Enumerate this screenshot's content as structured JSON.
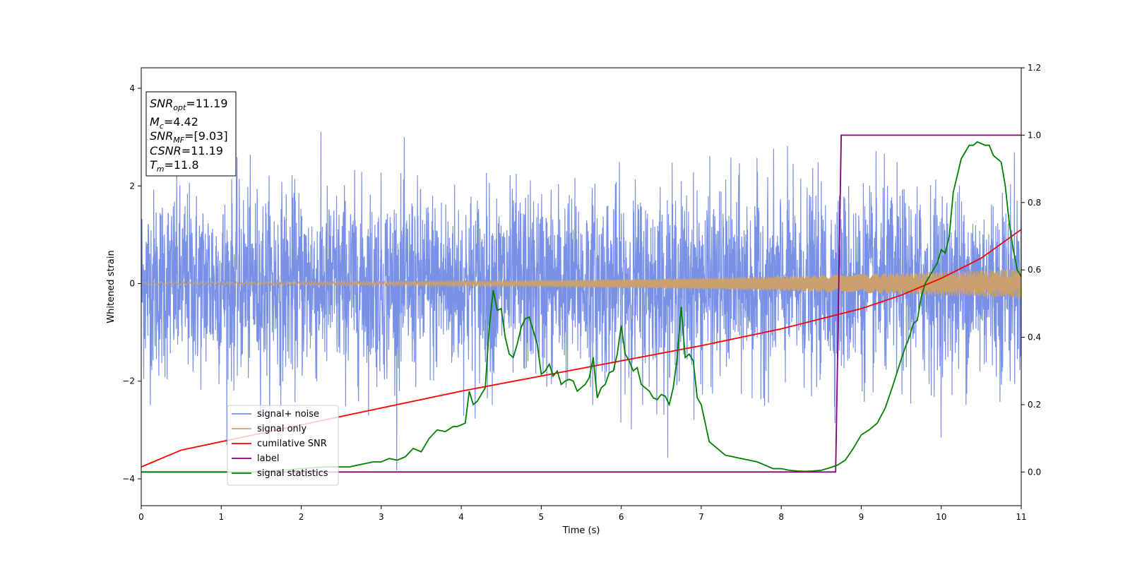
{
  "chart_data": {
    "type": "line",
    "xlabel": "Time (s)",
    "ylabel": "Whitened strain",
    "xlim": [
      0,
      11
    ],
    "ylim_left": [
      -4.55,
      4.42
    ],
    "ylim_right": [
      -0.1,
      1.2
    ],
    "x_ticks": [
      "0",
      "1",
      "2",
      "3",
      "4",
      "5",
      "6",
      "7",
      "8",
      "9",
      "10",
      "11"
    ],
    "y_ticks_left": [
      "4",
      "2",
      "0",
      "−2",
      "−4"
    ],
    "y_ticks_right": [
      "1.2",
      "1.0",
      "0.8",
      "0.6",
      "0.4",
      "0.2",
      "0.0"
    ],
    "legend_position": "lower-left",
    "info_box": {
      "snr_opt_label": "SNR",
      "snr_opt_sub": "opt",
      "snr_opt_value": "=11.19",
      "mc_label": "M",
      "mc_sub": "c",
      "mc_value": "=4.42",
      "snr_mf_label": "SNR",
      "snr_mf_sub": "MF",
      "snr_mf_value": "=[9.03]",
      "csnr_label": "CSNR",
      "csnr_value": "=11.19",
      "tm_label": "T",
      "tm_sub": "m",
      "tm_value": "=11.8"
    },
    "series": [
      {
        "name": "signal+ noise",
        "axis": "left",
        "color": "#7890e6",
        "kind": "noise",
        "sigma": 0.95,
        "max_abs": 4.0
      },
      {
        "name": "signal only",
        "axis": "left",
        "color": "#c9a06e",
        "kind": "chirp",
        "amplitude_start": 0.03,
        "amplitude_end": 0.3
      },
      {
        "name": "cumilative SNR",
        "axis": "right",
        "color": "#ff0000",
        "x": [
          0,
          0.5,
          1,
          2,
          3,
          4,
          5,
          6,
          7,
          8,
          9,
          9.5,
          10,
          10.5,
          11
        ],
        "y": [
          0.015,
          0.065,
          0.09,
          0.14,
          0.19,
          0.24,
          0.285,
          0.33,
          0.375,
          0.425,
          0.485,
          0.525,
          0.575,
          0.635,
          0.72
        ]
      },
      {
        "name": "label",
        "axis": "right",
        "color": "#800080",
        "x": [
          0,
          8.68,
          8.75,
          11
        ],
        "y": [
          0.0,
          0.0,
          1.0,
          1.0
        ]
      },
      {
        "name": "signal statistics",
        "axis": "right",
        "color": "#008000",
        "x": [
          0,
          0.5,
          1,
          1.5,
          2,
          2.3,
          2.6,
          2.8,
          2.9,
          3.0,
          3.1,
          3.2,
          3.3,
          3.4,
          3.5,
          3.6,
          3.7,
          3.8,
          3.9,
          3.95,
          4.0,
          4.05,
          4.1,
          4.15,
          4.2,
          4.25,
          4.3,
          4.35,
          4.4,
          4.45,
          4.5,
          4.55,
          4.6,
          4.65,
          4.7,
          4.75,
          4.8,
          4.85,
          4.9,
          4.95,
          5.0,
          5.05,
          5.1,
          5.15,
          5.2,
          5.25,
          5.3,
          5.35,
          5.4,
          5.45,
          5.5,
          5.55,
          5.6,
          5.65,
          5.7,
          5.75,
          5.8,
          5.85,
          5.9,
          5.95,
          6.0,
          6.05,
          6.1,
          6.15,
          6.2,
          6.25,
          6.3,
          6.35,
          6.4,
          6.45,
          6.5,
          6.55,
          6.6,
          6.65,
          6.7,
          6.75,
          6.8,
          6.85,
          6.9,
          6.95,
          7.0,
          7.1,
          7.2,
          7.3,
          7.4,
          7.5,
          7.6,
          7.7,
          7.8,
          7.9,
          8.0,
          8.1,
          8.2,
          8.3,
          8.4,
          8.5,
          8.6,
          8.7,
          8.8,
          8.9,
          9.0,
          9.1,
          9.2,
          9.3,
          9.4,
          9.5,
          9.55,
          9.6,
          9.65,
          9.7,
          9.75,
          9.8,
          9.85,
          9.9,
          9.95,
          10.0,
          10.05,
          10.1,
          10.15,
          10.2,
          10.25,
          10.3,
          10.35,
          10.4,
          10.45,
          10.5,
          10.55,
          10.6,
          10.65,
          10.7,
          10.75,
          10.8,
          10.85,
          10.9,
          10.95,
          11.0
        ],
        "y": [
          0.0,
          0.0,
          0.0,
          0.0,
          0.01,
          0.015,
          0.015,
          0.025,
          0.03,
          0.03,
          0.04,
          0.035,
          0.045,
          0.07,
          0.06,
          0.1,
          0.125,
          0.12,
          0.135,
          0.135,
          0.14,
          0.145,
          0.24,
          0.2,
          0.21,
          0.23,
          0.25,
          0.43,
          0.54,
          0.48,
          0.485,
          0.4,
          0.35,
          0.34,
          0.38,
          0.43,
          0.455,
          0.46,
          0.42,
          0.38,
          0.29,
          0.3,
          0.32,
          0.285,
          0.3,
          0.26,
          0.27,
          0.275,
          0.27,
          0.24,
          0.25,
          0.26,
          0.28,
          0.34,
          0.22,
          0.25,
          0.26,
          0.295,
          0.3,
          0.35,
          0.435,
          0.35,
          0.33,
          0.3,
          0.31,
          0.26,
          0.25,
          0.24,
          0.22,
          0.215,
          0.23,
          0.225,
          0.2,
          0.25,
          0.34,
          0.49,
          0.34,
          0.35,
          0.33,
          0.22,
          0.2,
          0.09,
          0.07,
          0.05,
          0.045,
          0.04,
          0.035,
          0.03,
          0.02,
          0.01,
          0.01,
          0.005,
          0.003,
          0.002,
          0.003,
          0.005,
          0.012,
          0.02,
          0.035,
          0.07,
          0.11,
          0.125,
          0.145,
          0.19,
          0.26,
          0.335,
          0.37,
          0.4,
          0.44,
          0.45,
          0.52,
          0.56,
          0.58,
          0.6,
          0.62,
          0.66,
          0.65,
          0.7,
          0.83,
          0.88,
          0.93,
          0.95,
          0.97,
          0.97,
          0.98,
          0.975,
          0.97,
          0.97,
          0.94,
          0.93,
          0.92,
          0.85,
          0.74,
          0.66,
          0.6,
          0.58
        ]
      }
    ]
  }
}
